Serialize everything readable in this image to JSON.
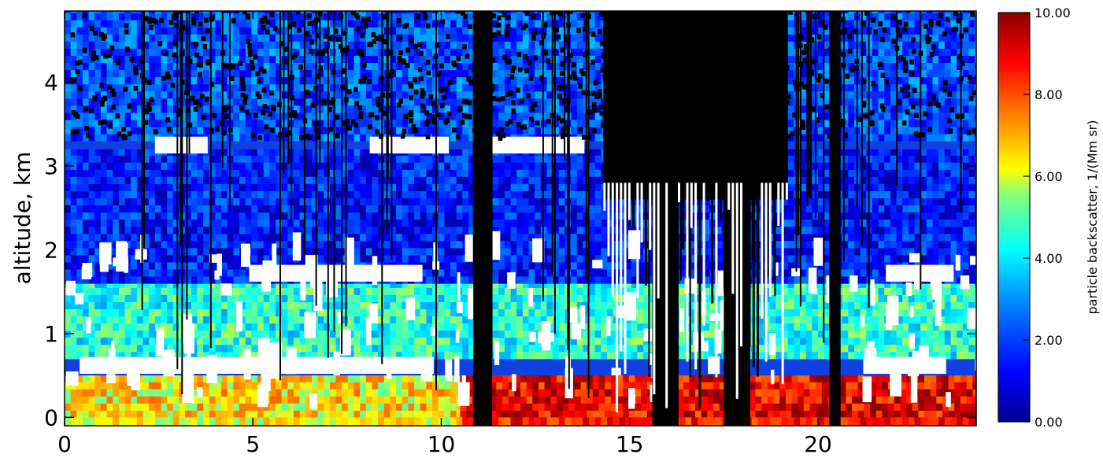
{
  "chart_data": {
    "type": "heatmap",
    "title": "",
    "xlabel": "",
    "ylabel": "altitude, km",
    "xlim": [
      0,
      24.2
    ],
    "ylim": [
      -0.1,
      4.85
    ],
    "x_ticks": [
      0,
      5,
      10,
      15,
      20
    ],
    "x_tick_labels": [
      "0",
      "5",
      "10",
      "15",
      "20"
    ],
    "y_ticks": [
      0,
      1,
      2,
      3,
      4
    ],
    "y_tick_labels": [
      "0",
      "1",
      "2",
      "3",
      "4"
    ],
    "grid": false,
    "colorbar": {
      "label": "particle backscatter, 1/(Mm sr)",
      "range": [
        0,
        10
      ],
      "ticks": [
        0,
        2,
        4,
        6,
        8,
        10
      ],
      "tick_labels": [
        "0.00",
        "2.00",
        "4.00",
        "6.00",
        "8.00",
        "10.00"
      ],
      "colormap": "rainbow"
    },
    "colors": {
      "no_data": "#000000",
      "cloud_mask": "#ffffff"
    },
    "layers": [
      {
        "y_from": 0.0,
        "y_to": 0.5,
        "x_from": 0,
        "x_to": 10.5,
        "value": 6.5
      },
      {
        "y_from": 0.0,
        "y_to": 0.5,
        "x_from": 10.5,
        "x_to": 24.2,
        "value": 9.0
      },
      {
        "y_from": 0.7,
        "y_to": 1.6,
        "x_from": 0,
        "x_to": 24.2,
        "value": 4.5
      },
      {
        "y_from": 1.6,
        "y_to": 3.2,
        "x_from": 0,
        "x_to": 24.2,
        "value": 1.5
      },
      {
        "y_from": 3.3,
        "y_to": 4.85,
        "x_from": 0,
        "x_to": 24.2,
        "value": 2.2
      }
    ],
    "cloud_bands": [
      {
        "y": 0.62,
        "x_from": 0.4,
        "x_to": 9.8
      },
      {
        "y": 0.62,
        "x_from": 21.2,
        "x_to": 23.4
      },
      {
        "y": 1.72,
        "x_from": 4.9,
        "x_to": 9.5
      },
      {
        "y": 1.72,
        "x_from": 21.8,
        "x_to": 23.6
      },
      {
        "y": 3.25,
        "x_from": 2.4,
        "x_to": 3.8
      },
      {
        "y": 3.25,
        "x_from": 8.1,
        "x_to": 10.2
      },
      {
        "y": 3.25,
        "x_from": 11.2,
        "x_to": 13.8
      }
    ],
    "no_data_columns": [
      {
        "x_from": 10.85,
        "x_to": 11.35
      },
      {
        "x_from": 15.6,
        "x_to": 16.3
      },
      {
        "x_from": 17.5,
        "x_to": 18.2
      },
      {
        "x_from": 20.3,
        "x_to": 20.6
      }
    ],
    "no_data_regions": [
      {
        "x_from": 14.3,
        "x_to": 19.2,
        "y_from": 2.6,
        "y_to": 4.85
      }
    ]
  }
}
